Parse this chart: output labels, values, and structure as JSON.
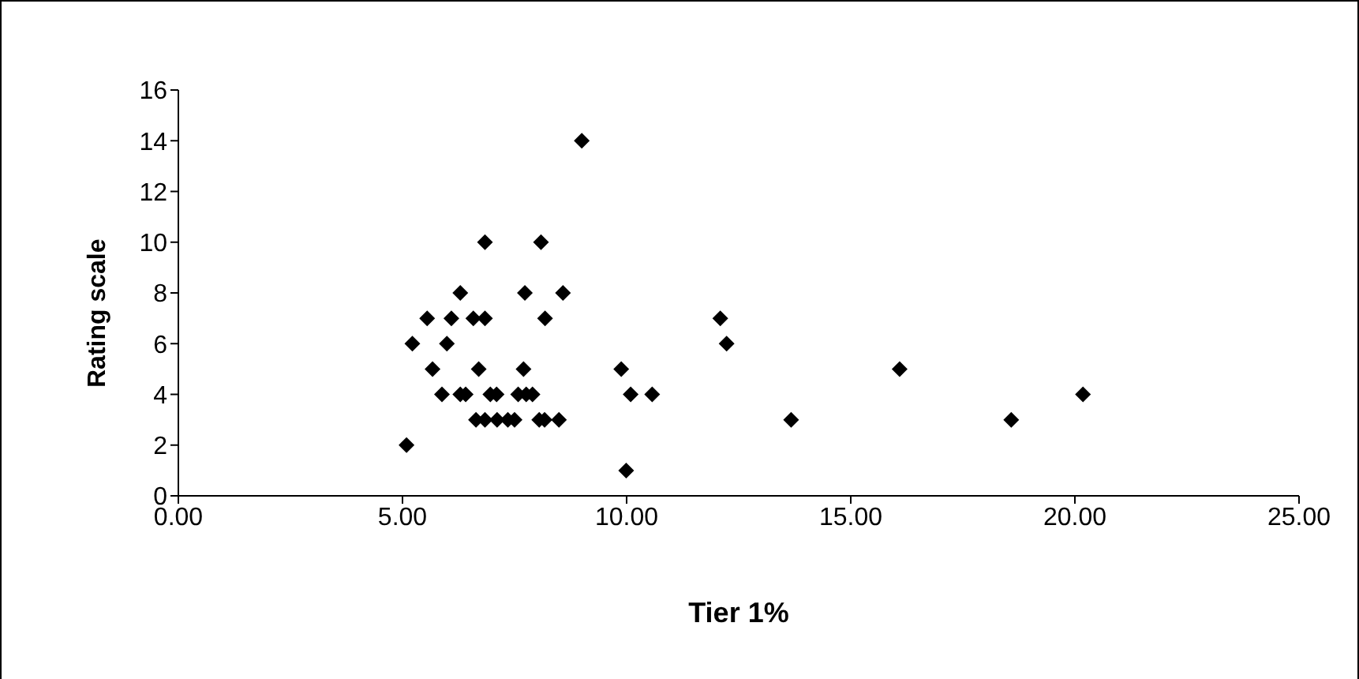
{
  "chart_data": {
    "type": "scatter",
    "xlabel": "Tier 1%",
    "ylabel": "Rating scale",
    "marker": "diamond",
    "grid": false,
    "legend": false,
    "x": [
      6.84,
      8.09,
      6.29,
      7.73,
      8.58,
      5.55,
      6.09,
      6.58,
      6.84,
      8.18,
      5.22,
      5.99,
      5.67,
      6.7,
      7.7,
      9.88,
      5.88,
      6.29,
      6.41,
      6.96,
      7.1,
      7.58,
      7.76,
      7.9,
      10.09,
      10.57,
      6.64,
      6.84,
      7.11,
      7.35,
      7.5,
      8.05,
      8.17,
      8.49,
      5.09,
      9.99,
      9.0,
      12.09,
      12.23,
      16.09,
      13.67,
      18.58,
      20.18
    ],
    "series": [
      {
        "color": "#000000",
        "values": [
          10,
          10,
          8,
          8,
          8,
          7,
          7,
          7,
          7,
          7,
          6,
          6,
          5,
          5,
          5,
          5,
          4,
          4,
          4,
          4,
          4,
          4,
          4,
          4,
          4,
          4,
          3,
          3,
          3,
          3,
          3,
          3,
          3,
          3,
          2,
          1,
          14,
          7,
          6,
          5,
          3,
          3,
          4
        ]
      }
    ],
    "xlim": [
      0,
      25
    ],
    "xticks": [
      {
        "value": 0,
        "label": "0.00"
      },
      {
        "value": 5,
        "label": "5.00"
      },
      {
        "value": 10,
        "label": "10.00"
      },
      {
        "value": 15,
        "label": "15.00"
      },
      {
        "value": 20,
        "label": "20.00"
      },
      {
        "value": 25,
        "label": "25.00"
      }
    ],
    "ylim": [
      0,
      16
    ],
    "yticks": [
      0,
      2,
      4,
      6,
      8,
      10,
      12,
      14,
      16
    ]
  }
}
